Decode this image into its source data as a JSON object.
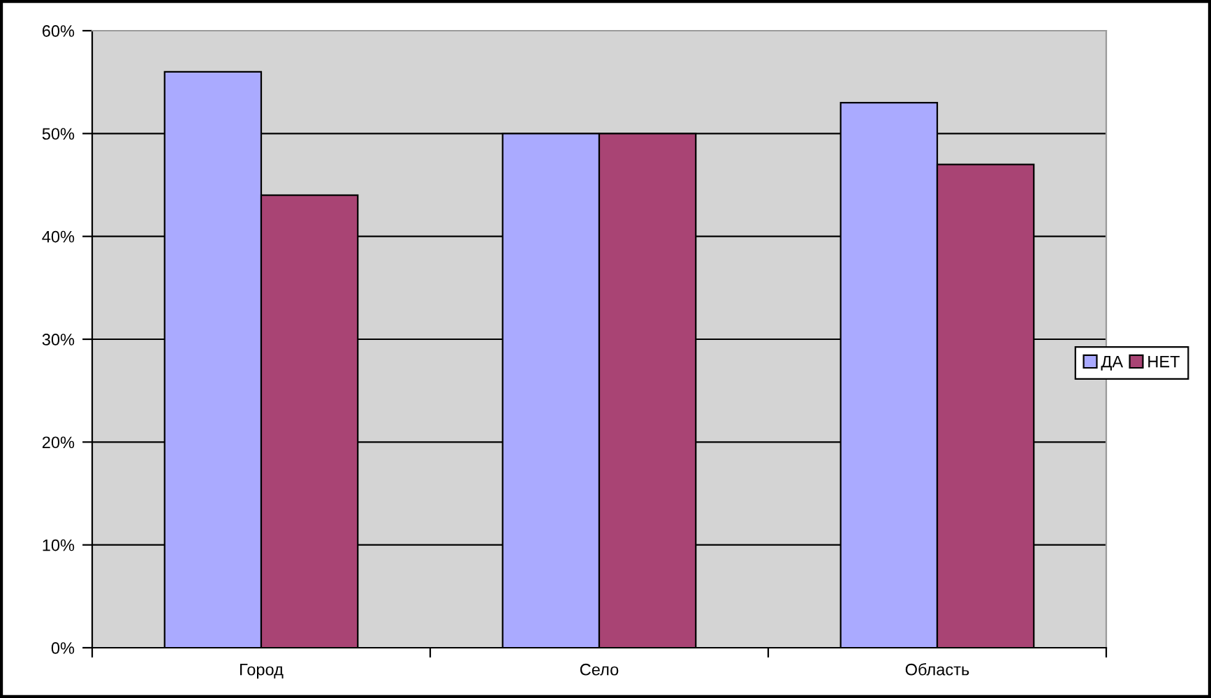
{
  "chart_data": {
    "type": "bar",
    "categories": [
      "Город",
      "Село",
      "Область"
    ],
    "series": [
      {
        "name": "ДА",
        "color": "#aaaaff",
        "values": [
          56,
          50,
          53
        ]
      },
      {
        "name": "НЕТ",
        "color": "#a94474",
        "values": [
          44,
          50,
          47
        ]
      }
    ],
    "ylim": [
      0,
      60
    ],
    "yticks": [
      {
        "value": 0,
        "label": "0%"
      },
      {
        "value": 10,
        "label": "10%"
      },
      {
        "value": 20,
        "label": "20%"
      },
      {
        "value": 30,
        "label": "30%"
      },
      {
        "value": 40,
        "label": "40%"
      },
      {
        "value": 50,
        "label": "50%"
      },
      {
        "value": 60,
        "label": "60%"
      }
    ],
    "grid": "y",
    "legend": "right"
  }
}
